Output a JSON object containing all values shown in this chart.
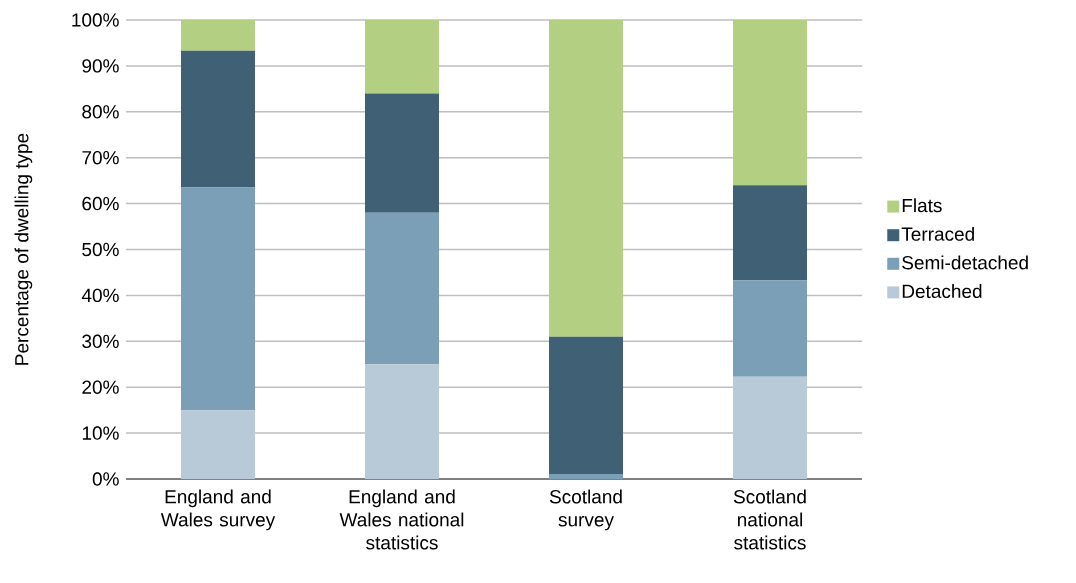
{
  "chart_data": {
    "type": "bar",
    "stacked": true,
    "ylabel": "Percentage of dwelling type",
    "categories": [
      "England and Wales survey",
      "England and Wales national statistics",
      "Scotland survey",
      "Scotland national statistics"
    ],
    "series": [
      {
        "name": "Detached",
        "color": "#b8c9d7",
        "values": [
          15,
          25,
          null,
          22.3
        ]
      },
      {
        "name": "Semi-detached",
        "color": "#7b9fb7",
        "values": [
          48.5,
          33,
          1.1,
          21
        ]
      },
      {
        "name": "Terraced",
        "color": "#3f6075",
        "values": [
          29.8,
          26,
          29.9,
          20.7
        ]
      },
      {
        "name": "Flats",
        "color": "#b3cf82",
        "values": [
          6.7,
          16,
          69,
          36
        ]
      }
    ],
    "ylim": [
      0,
      100
    ],
    "yticks": [
      {
        "value": 0,
        "label": "0%"
      },
      {
        "value": 10,
        "label": "10%"
      },
      {
        "value": 20,
        "label": "20%"
      },
      {
        "value": 30,
        "label": "30%"
      },
      {
        "value": 40,
        "label": "40%"
      },
      {
        "value": 50,
        "label": "50%"
      },
      {
        "value": 60,
        "label": "60%"
      },
      {
        "value": 70,
        "label": "70%"
      },
      {
        "value": 80,
        "label": "80%"
      },
      {
        "value": 90,
        "label": "90%"
      },
      {
        "value": 100,
        "label": "100%"
      }
    ],
    "grid": "y",
    "legend": "right"
  }
}
